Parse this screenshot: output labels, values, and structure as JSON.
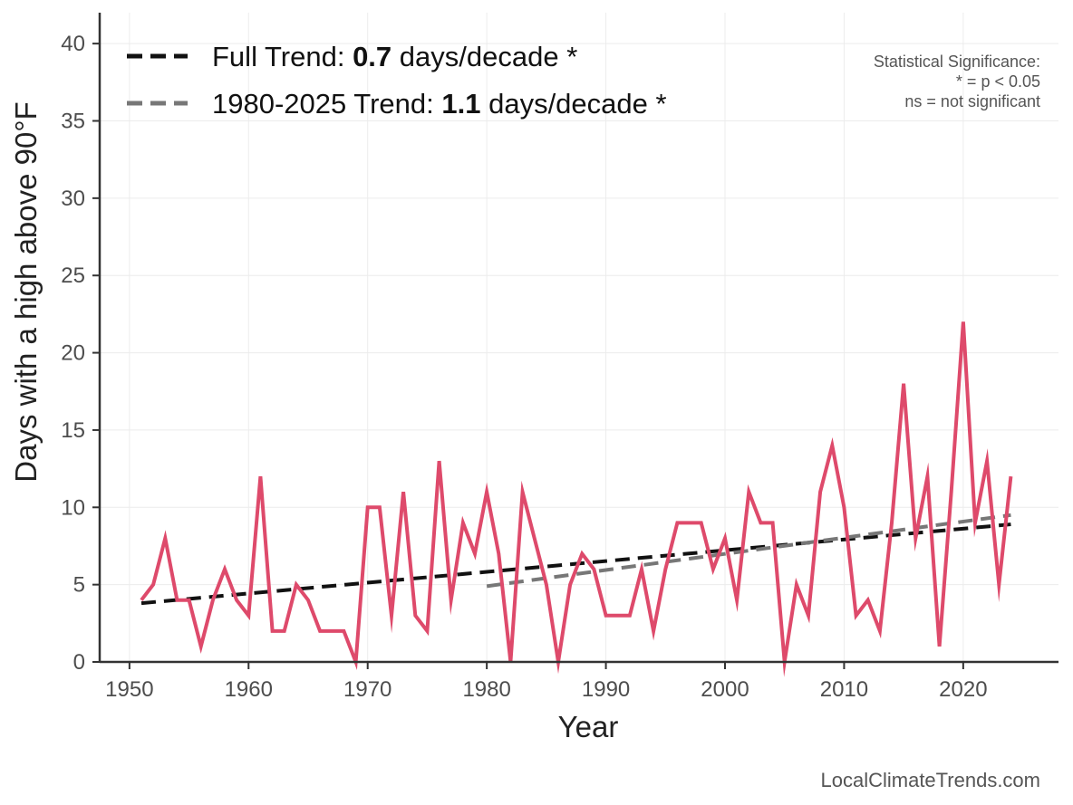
{
  "chart_data": {
    "type": "line",
    "title": "",
    "xlabel": "Year",
    "ylabel": "Days with a high above 90°F",
    "xlim": [
      1947.5,
      2028
    ],
    "ylim": [
      0,
      42
    ],
    "xticks": [
      1950,
      1960,
      1970,
      1980,
      1990,
      2000,
      2010,
      2020
    ],
    "yticks": [
      0,
      5,
      10,
      15,
      20,
      25,
      30,
      35,
      40
    ],
    "grid": true,
    "series": [
      {
        "name": "Days with a high above 90°F",
        "color": "#de4a6b",
        "x": [
          1951,
          1952,
          1953,
          1954,
          1955,
          1956,
          1957,
          1958,
          1959,
          1960,
          1961,
          1962,
          1963,
          1964,
          1965,
          1966,
          1967,
          1968,
          1969,
          1970,
          1971,
          1972,
          1973,
          1974,
          1975,
          1976,
          1977,
          1978,
          1979,
          1980,
          1981,
          1982,
          1983,
          1984,
          1985,
          1986,
          1987,
          1988,
          1989,
          1990,
          1991,
          1992,
          1993,
          1994,
          1995,
          1996,
          1997,
          1998,
          1999,
          2000,
          2001,
          2002,
          2003,
          2004,
          2005,
          2006,
          2007,
          2008,
          2009,
          2010,
          2011,
          2012,
          2013,
          2014,
          2015,
          2016,
          2017,
          2018,
          2019,
          2020,
          2021,
          2022,
          2023,
          2024
        ],
        "values": [
          4,
          5,
          8,
          4,
          4,
          1,
          4,
          6,
          4,
          3,
          12,
          2,
          2,
          5,
          4,
          2,
          2,
          2,
          0,
          10,
          10,
          3,
          11,
          3,
          2,
          13,
          4,
          9,
          7,
          11,
          7,
          0,
          11,
          8,
          5,
          0,
          5,
          7,
          6,
          3,
          3,
          3,
          6,
          2,
          6,
          9,
          9,
          9,
          6,
          8,
          4,
          11,
          9,
          9,
          0,
          5,
          3,
          11,
          14,
          10,
          3,
          4,
          2,
          9,
          18,
          8,
          12,
          1,
          11,
          22,
          9,
          13,
          5,
          12
        ]
      }
    ],
    "trends": [
      {
        "name": "Full Trend",
        "color": "#111111",
        "x": [
          1951,
          2024
        ],
        "y": [
          3.8,
          8.9
        ]
      },
      {
        "name": "1980-2025 Trend",
        "color": "#777777",
        "x": [
          1980,
          2024
        ],
        "y": [
          4.9,
          9.5
        ]
      }
    ],
    "legend": {
      "position": "top-left",
      "entries": [
        {
          "prefix": "Full Trend: ",
          "value": "0.7",
          "suffix": " days/decade *",
          "color": "#111111"
        },
        {
          "prefix": "1980-2025 Trend: ",
          "value": "1.1",
          "suffix": " days/decade *",
          "color": "#777777"
        }
      ]
    },
    "annotations": {
      "significance_lines": [
        "Statistical Significance:",
        "* = p < 0.05",
        "ns = not significant"
      ],
      "credit": "LocalClimateTrends.com"
    }
  }
}
